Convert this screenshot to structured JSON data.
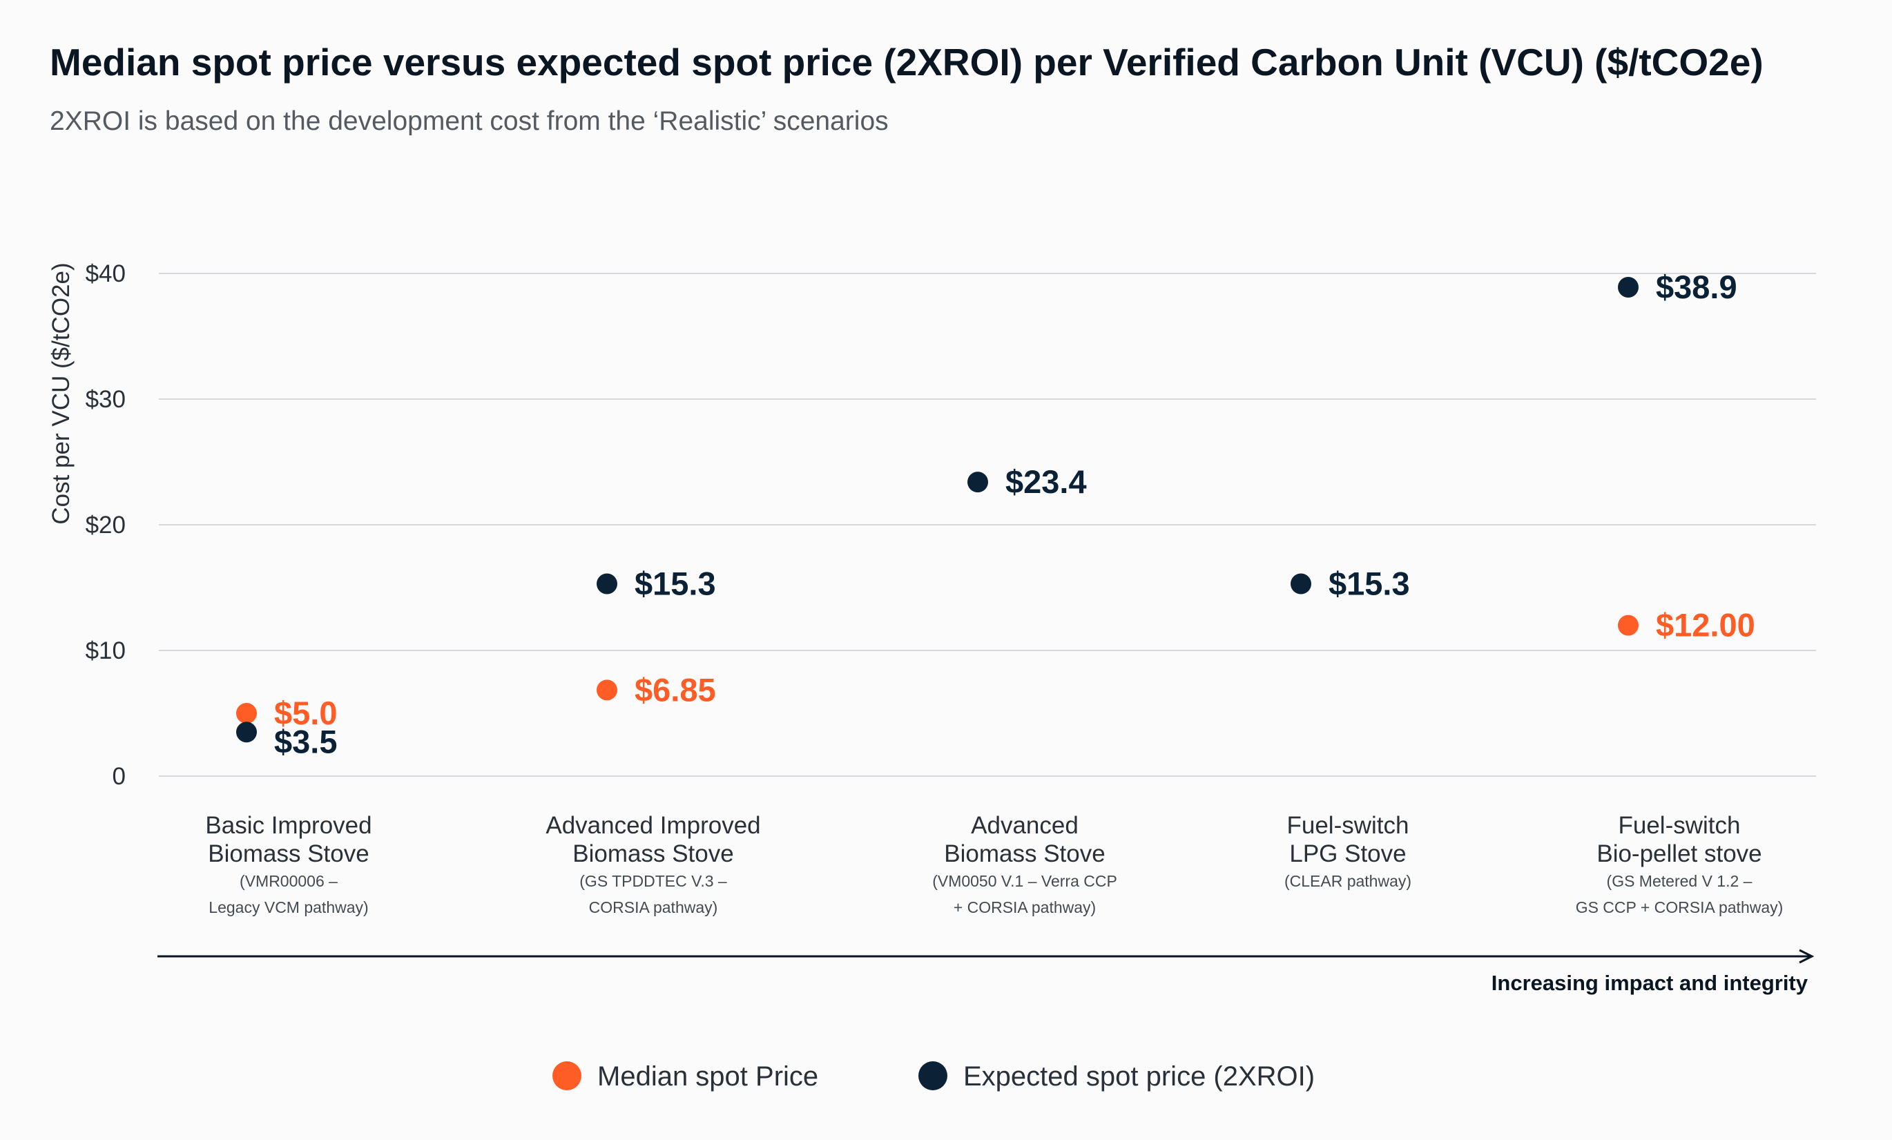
{
  "chart_data": {
    "type": "scatter",
    "title": "Median spot price versus expected spot price (2XROI) per Verified Carbon Unit (VCU) ($/tCO2e)",
    "subtitle": "2XROI is based on the development cost from the ‘Realistic’ scenarios",
    "ylabel": "Cost per VCU ($/tCO2e)",
    "ylim": [
      0,
      40
    ],
    "yticks": [
      {
        "value": 0,
        "label": "0"
      },
      {
        "value": 10,
        "label": "$10"
      },
      {
        "value": 20,
        "label": "$20"
      },
      {
        "value": 30,
        "label": "$30"
      },
      {
        "value": 40,
        "label": "$40"
      }
    ],
    "grid": true,
    "categories": [
      {
        "name": [
          "Basic Improved",
          "Biomass Stove"
        ],
        "sub": [
          "(VMR00006 –",
          "Legacy VCM pathway)"
        ]
      },
      {
        "name": [
          "Advanced Improved",
          "Biomass Stove"
        ],
        "sub": [
          "(GS TPDDTEC V.3 –",
          "CORSIA pathway)"
        ]
      },
      {
        "name": [
          "Advanced",
          "Biomass Stove"
        ],
        "sub": [
          "(VM0050 V.1 – Verra CCP",
          "+ CORSIA pathway)"
        ]
      },
      {
        "name": [
          "Fuel-switch",
          "LPG Stove"
        ],
        "sub": [
          "(CLEAR pathway)"
        ]
      },
      {
        "name": [
          "Fuel-switch",
          "Bio-pellet stove"
        ],
        "sub": [
          "(GS Metered V 1.2 –",
          "GS CCP + CORSIA pathway)"
        ]
      }
    ],
    "series": [
      {
        "name": "Median spot Price",
        "color": "#ff5c26",
        "points": [
          {
            "category": 0,
            "value": 5.0,
            "label": "$5.0"
          },
          {
            "category": 1,
            "value": 6.85,
            "label": "$6.85"
          },
          {
            "category": 4,
            "value": 12.0,
            "label": "$12.00"
          }
        ]
      },
      {
        "name": "Expected spot price (2XROI)",
        "color": "#0b2236",
        "points": [
          {
            "category": 0,
            "value": 3.5,
            "label": "$3.5"
          },
          {
            "category": 1,
            "value": 15.3,
            "label": "$15.3"
          },
          {
            "category": 2,
            "value": 23.4,
            "label": "$23.4"
          },
          {
            "category": 3,
            "value": 15.3,
            "label": "$15.3"
          },
          {
            "category": 4,
            "value": 38.9,
            "label": "$38.9"
          }
        ]
      }
    ],
    "x_arrow_label": "Increasing impact and integrity",
    "legend": "bottom-center"
  }
}
